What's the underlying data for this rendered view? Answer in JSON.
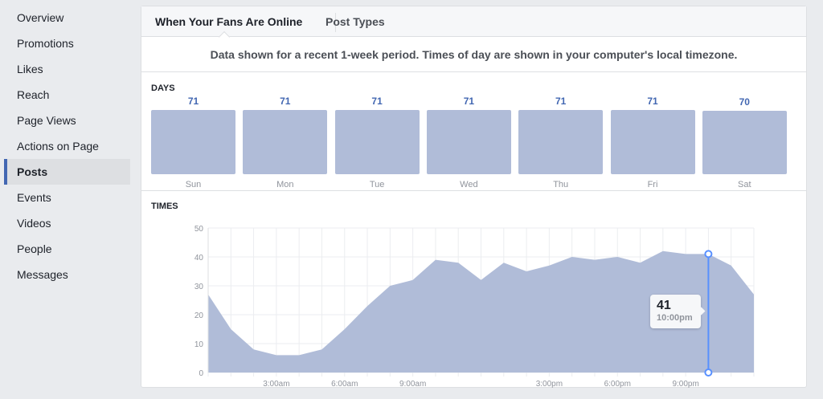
{
  "sidebar": {
    "items": [
      {
        "label": "Overview"
      },
      {
        "label": "Promotions"
      },
      {
        "label": "Likes"
      },
      {
        "label": "Reach"
      },
      {
        "label": "Page Views"
      },
      {
        "label": "Actions on Page"
      },
      {
        "label": "Posts",
        "active": true
      },
      {
        "label": "Events"
      },
      {
        "label": "Videos"
      },
      {
        "label": "People"
      },
      {
        "label": "Messages"
      }
    ]
  },
  "tabs": [
    {
      "label": "When Your Fans Are Online",
      "active": true
    },
    {
      "label": "Post Types"
    }
  ],
  "notice": "Data shown for a recent 1-week period. Times of day are shown in your computer's local timezone.",
  "days_label": "DAYS",
  "times_label": "TIMES",
  "colors": {
    "fill": "#b0bcd8",
    "accent": "#4267b2",
    "cursor": "#5890ff"
  },
  "chart_data": [
    {
      "type": "bar",
      "title": "DAYS",
      "categories": [
        "Sun",
        "Mon",
        "Tue",
        "Wed",
        "Thu",
        "Fri",
        "Sat"
      ],
      "values": [
        71,
        71,
        71,
        71,
        71,
        71,
        70
      ]
    },
    {
      "type": "area",
      "title": "TIMES",
      "x": [
        0,
        1,
        2,
        3,
        4,
        5,
        6,
        7,
        8,
        9,
        10,
        11,
        12,
        13,
        14,
        15,
        16,
        17,
        18,
        19,
        20,
        21,
        22,
        23,
        24
      ],
      "values": [
        27,
        15,
        8,
        6,
        6,
        8,
        15,
        23,
        30,
        32,
        39,
        38,
        32,
        38,
        35,
        37,
        40,
        39,
        40,
        38,
        42,
        41,
        41,
        37,
        27
      ],
      "ylim": [
        0,
        50
      ],
      "yticks": [
        "0",
        "10",
        "20",
        "30",
        "40",
        "50"
      ],
      "xticks": [
        {
          "hour": 3,
          "label": "3:00am"
        },
        {
          "hour": 6,
          "label": "6:00am"
        },
        {
          "hour": 9,
          "label": "9:00am"
        },
        {
          "hour": 15,
          "label": "3:00pm"
        },
        {
          "hour": 18,
          "label": "6:00pm"
        },
        {
          "hour": 21,
          "label": "9:00pm"
        }
      ],
      "grid": true,
      "tooltip": {
        "value": "41",
        "time": "10:00pm",
        "hour": 22
      }
    }
  ]
}
